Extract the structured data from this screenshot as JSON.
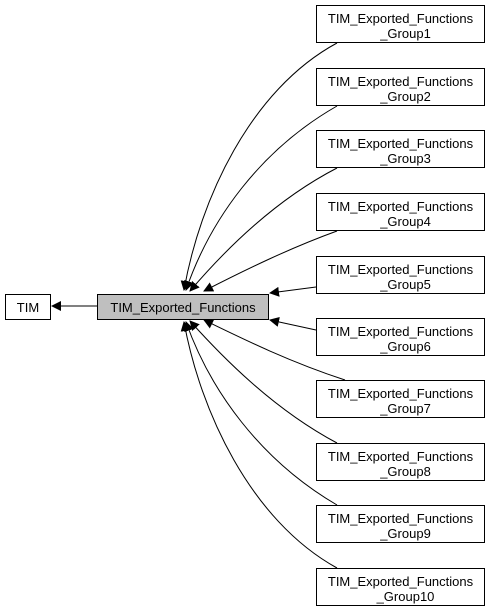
{
  "nodes": {
    "tim": {
      "label": "TIM"
    },
    "main": {
      "label": "TIM_Exported_Functions"
    },
    "groups": [
      {
        "line1": "TIM_Exported_Functions",
        "line2": "_Group1"
      },
      {
        "line1": "TIM_Exported_Functions",
        "line2": "_Group2"
      },
      {
        "line1": "TIM_Exported_Functions",
        "line2": "_Group3"
      },
      {
        "line1": "TIM_Exported_Functions",
        "line2": "_Group4"
      },
      {
        "line1": "TIM_Exported_Functions",
        "line2": "_Group5"
      },
      {
        "line1": "TIM_Exported_Functions",
        "line2": "_Group6"
      },
      {
        "line1": "TIM_Exported_Functions",
        "line2": "_Group7"
      },
      {
        "line1": "TIM_Exported_Functions",
        "line2": "_Group8"
      },
      {
        "line1": "TIM_Exported_Functions",
        "line2": "_Group9"
      },
      {
        "line1": "TIM_Exported_Functions",
        "line2": "_Group10"
      }
    ]
  },
  "colors": {
    "current_fill": "#bfbfbf",
    "node_fill": "#ffffff",
    "stroke": "#000000"
  }
}
